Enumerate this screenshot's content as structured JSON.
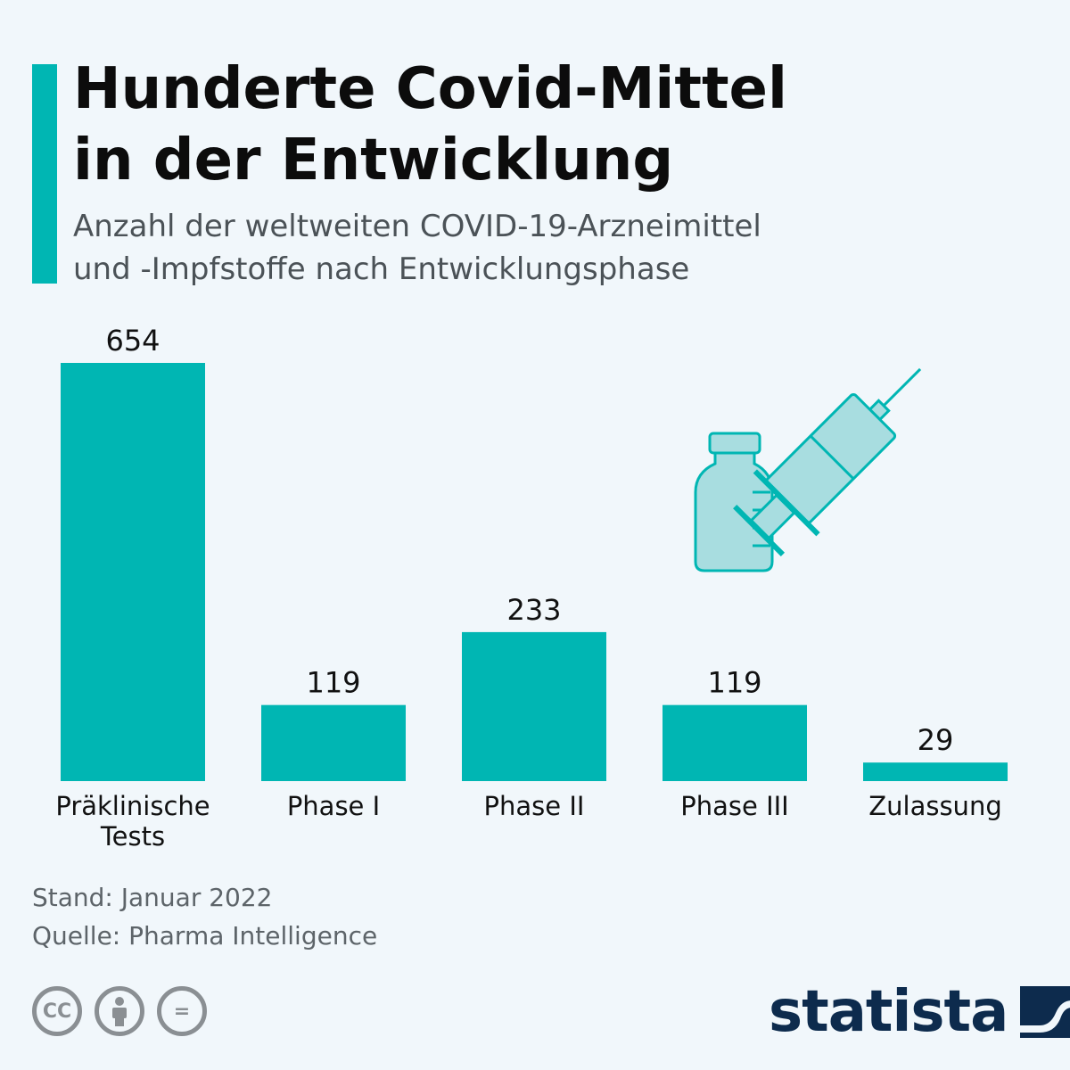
{
  "header": {
    "title_line1": "Hunderte Covid-Mittel",
    "title_line2": "in der Entwicklung",
    "subtitle_line1": "Anzahl der weltweiten COVID-19-Arzneimittel",
    "subtitle_line2": "und -Impfstoffe nach Entwicklungsphase"
  },
  "chart_data": {
    "type": "bar",
    "categories": [
      [
        "Präklinische",
        "Tests"
      ],
      [
        "Phase I"
      ],
      [
        "Phase II"
      ],
      [
        "Phase III"
      ],
      [
        "Zulassung"
      ]
    ],
    "values": [
      654,
      119,
      233,
      119,
      29
    ],
    "ylim": [
      0,
      654
    ],
    "grid": false,
    "bar_color": "#00b6b3"
  },
  "footer": {
    "stand": "Stand: Januar 2022",
    "source": "Quelle: Pharma Intelligence",
    "license_icons": [
      "creative-commons-icon",
      "attribution-icon",
      "no-derivatives-icon"
    ],
    "cc_label": "CC",
    "nd_label": "="
  },
  "brand": {
    "name": "statista",
    "color": "#0d2b4d"
  },
  "illustration": {
    "icons": [
      "vaccine-vial-icon",
      "syringe-icon"
    ],
    "color": "#00b6b3"
  }
}
